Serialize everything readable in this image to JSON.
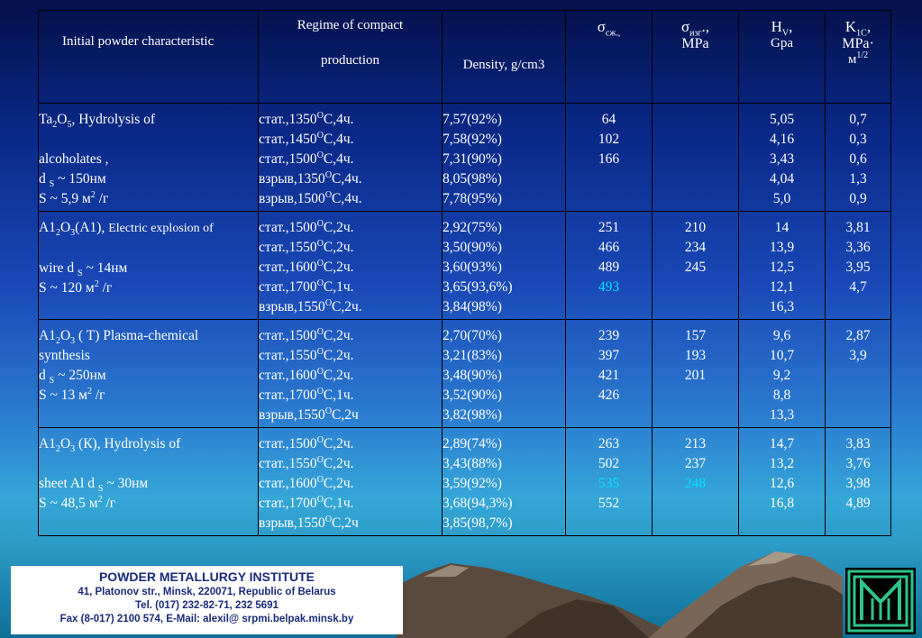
{
  "header": {
    "col1": "Initial powder characteristic",
    "col2_line1": "Regime of compact",
    "col2_line2": "production",
    "col3": "Density, g/cm3",
    "col4_sym": "σ",
    "col4_sub": "сж.,",
    "col5_sym": "σ",
    "col5_sub": "изг",
    "col5_suffix": ".,",
    "col5_unit": "MPa",
    "col6_sym": "H",
    "col6_sub": "V",
    "col6_suffix": ",",
    "col6_unit": "Gpa",
    "col7_sym": "K",
    "col7_sub": "1C",
    "col7_suffix": ",",
    "col7_unit": "MPa·",
    "col7_unit2": "м",
    "col7_unit2_sup": "1/2"
  },
  "groups": [
    {
      "material": {
        "a": "Ta",
        "s1": "2",
        "b": "O",
        "s2": "5",
        "c": ", Hydrolysis of"
      },
      "extra": "alcoholates  ,",
      "ds": "~ 150нм",
      "area": "S ~ 5,9 м",
      "area_sup": "2",
      "area_tail": " /г",
      "regimes": [
        {
          "a": "стат.,1350",
          "sup": "О",
          "b": "С,4ч."
        },
        {
          "a": "стат.,1450",
          "sup": "О",
          "b": "С,4ч."
        },
        {
          "a": "стат.,1500",
          "sup": "О",
          "b": "С,4ч."
        },
        {
          "a": "взрыв,1350",
          "sup": "О",
          "b": "С,4ч."
        },
        {
          "a": "взрыв,1500",
          "sup": "О",
          "b": "С,4ч."
        }
      ],
      "density": [
        "7,57(92%)",
        "7,58(92%)",
        "7,31(90%)",
        "8,05(98%)",
        "7,78(95%)"
      ],
      "sigma_c": [
        "64",
        "102",
        "166"
      ],
      "sigma_b": [],
      "hv": [
        "5,05",
        "4,16",
        "3,43",
        "4,04",
        "5,0"
      ],
      "k1c": [
        "0,7",
        "0,3",
        "0,6",
        "1,3",
        "0,9"
      ]
    },
    {
      "material": {
        "a": "A1",
        "s1": "2",
        "b": "O",
        "s2": "3",
        "c": "(A1), "
      },
      "material_small": "Electric explosion of",
      "extra": "wire",
      "ds": "~ 14нм",
      "area": "S ~ 120 м",
      "area_sup": "2",
      "area_tail": " /г",
      "regimes": [
        {
          "a": "стат.,1500",
          "sup": "О",
          "b": "С,2ч."
        },
        {
          "a": "стат.,1550",
          "sup": "О",
          "b": "С,2ч."
        },
        {
          "a": "стат.,1600",
          "sup": "О",
          "b": "С,2ч."
        },
        {
          "a": "стат.,1700",
          "sup": "О",
          "b": "С,1ч."
        },
        {
          "a": "взрыв,1550",
          "sup": "О",
          "b": "С,2ч."
        }
      ],
      "density": [
        "2,92(75%)",
        "3,50(90%)",
        "3,60(93%)",
        "3,65(93,6%)",
        "3,84(98%)"
      ],
      "sigma_c": [
        "251",
        "466",
        "489",
        "493"
      ],
      "sigma_b": [
        "210",
        "234",
        "245"
      ],
      "hv": [
        "14",
        "13,9",
        "12,5",
        "12,1",
        "16,3"
      ],
      "k1c": [
        "3,81",
        "3,36",
        "3,95",
        "4,7"
      ]
    },
    {
      "material": {
        "a": "A1",
        "s1": "2",
        "b": "O",
        "s2": "3",
        "c": " ( T) Plasma-chemical"
      },
      "extra": "synthesis",
      "ds": "~ 250нм",
      "area": "S ~ 13 м",
      "area_sup": "2",
      "area_tail": " /г",
      "regimes": [
        {
          "a": "стат.,1500",
          "sup": "О",
          "b": "С,2ч."
        },
        {
          "a": "стат.,1550",
          "sup": "О",
          "b": "С,2ч."
        },
        {
          "a": "стат.,1600",
          "sup": "О",
          "b": "С,2ч."
        },
        {
          "a": "стат.,1700",
          "sup": "О",
          "b": "С,1ч."
        },
        {
          "a": "взрыв,1550",
          "sup": "О",
          "b": "С,2ч"
        }
      ],
      "density": [
        "2,70(70%)",
        "3,21(83%)",
        "3,48(90%)",
        "3,52(90%)",
        "3,82(98%)"
      ],
      "sigma_c": [
        "239",
        "397",
        "421",
        "426"
      ],
      "sigma_b": [
        "157",
        "193",
        "201"
      ],
      "hv": [
        "9,6",
        "10,7",
        "9,2",
        "8,8",
        "13,3"
      ],
      "k1c": [
        "2,87",
        "3,9"
      ]
    },
    {
      "material": {
        "a": "A1",
        "s1": "2",
        "b": "O",
        "s2": "3",
        "c": " (К), Hydrolysis of"
      },
      "extra": "sheet Al",
      "ds": "~ 30нм",
      "area": "S ~ 48,5 м",
      "area_sup": "2",
      "area_tail": " /г",
      "regimes": [
        {
          "a": "стат.,1500",
          "sup": "О",
          "b": "С,2ч."
        },
        {
          "a": "стат.,1550",
          "sup": "О",
          "b": "С,2ч."
        },
        {
          "a": "стат.,1600",
          "sup": "О",
          "b": "С,2ч."
        },
        {
          "a": "стат.,1700",
          "sup": "О",
          "b": "С,1ч."
        },
        {
          "a": "взрыв,1550",
          "sup": "О",
          "b": "С,2ч"
        }
      ],
      "density": [
        "2,89(74%)",
        "3,43(88%)",
        "3,59(92%)",
        "3,68(94,3%)",
        "3,85(98,7%)"
      ],
      "sigma_c": [
        "263",
        "502",
        "535",
        "552"
      ],
      "sigma_b": [
        "213",
        "237",
        "248"
      ],
      "hv": [
        "14,7",
        "13,2",
        "12,6",
        "16,8"
      ],
      "k1c": [
        "3,83",
        "3,76",
        "3,98",
        "4,89"
      ]
    }
  ],
  "ds_label": "d",
  "ds_sub": "S",
  "highlights": {
    "g1_sigma_c_3": true,
    "g3_sigma_c_2": true,
    "g3_sigma_b_2": true
  },
  "footer": {
    "title": "POWDER METALLURGY  INSTITUTE",
    "address": "41, Platonov str., Minsk, 220071, Republic of Belarus",
    "tel": "Tel. (017) 232-82-71, 232 5691",
    "fax": "Fax (8-017) 2100 574, E-Mail: alexil@ srpmi.belpak.minsk.by"
  },
  "colors": {
    "highlight": "#00e0ff",
    "footer_text": "#1a2a7a"
  }
}
